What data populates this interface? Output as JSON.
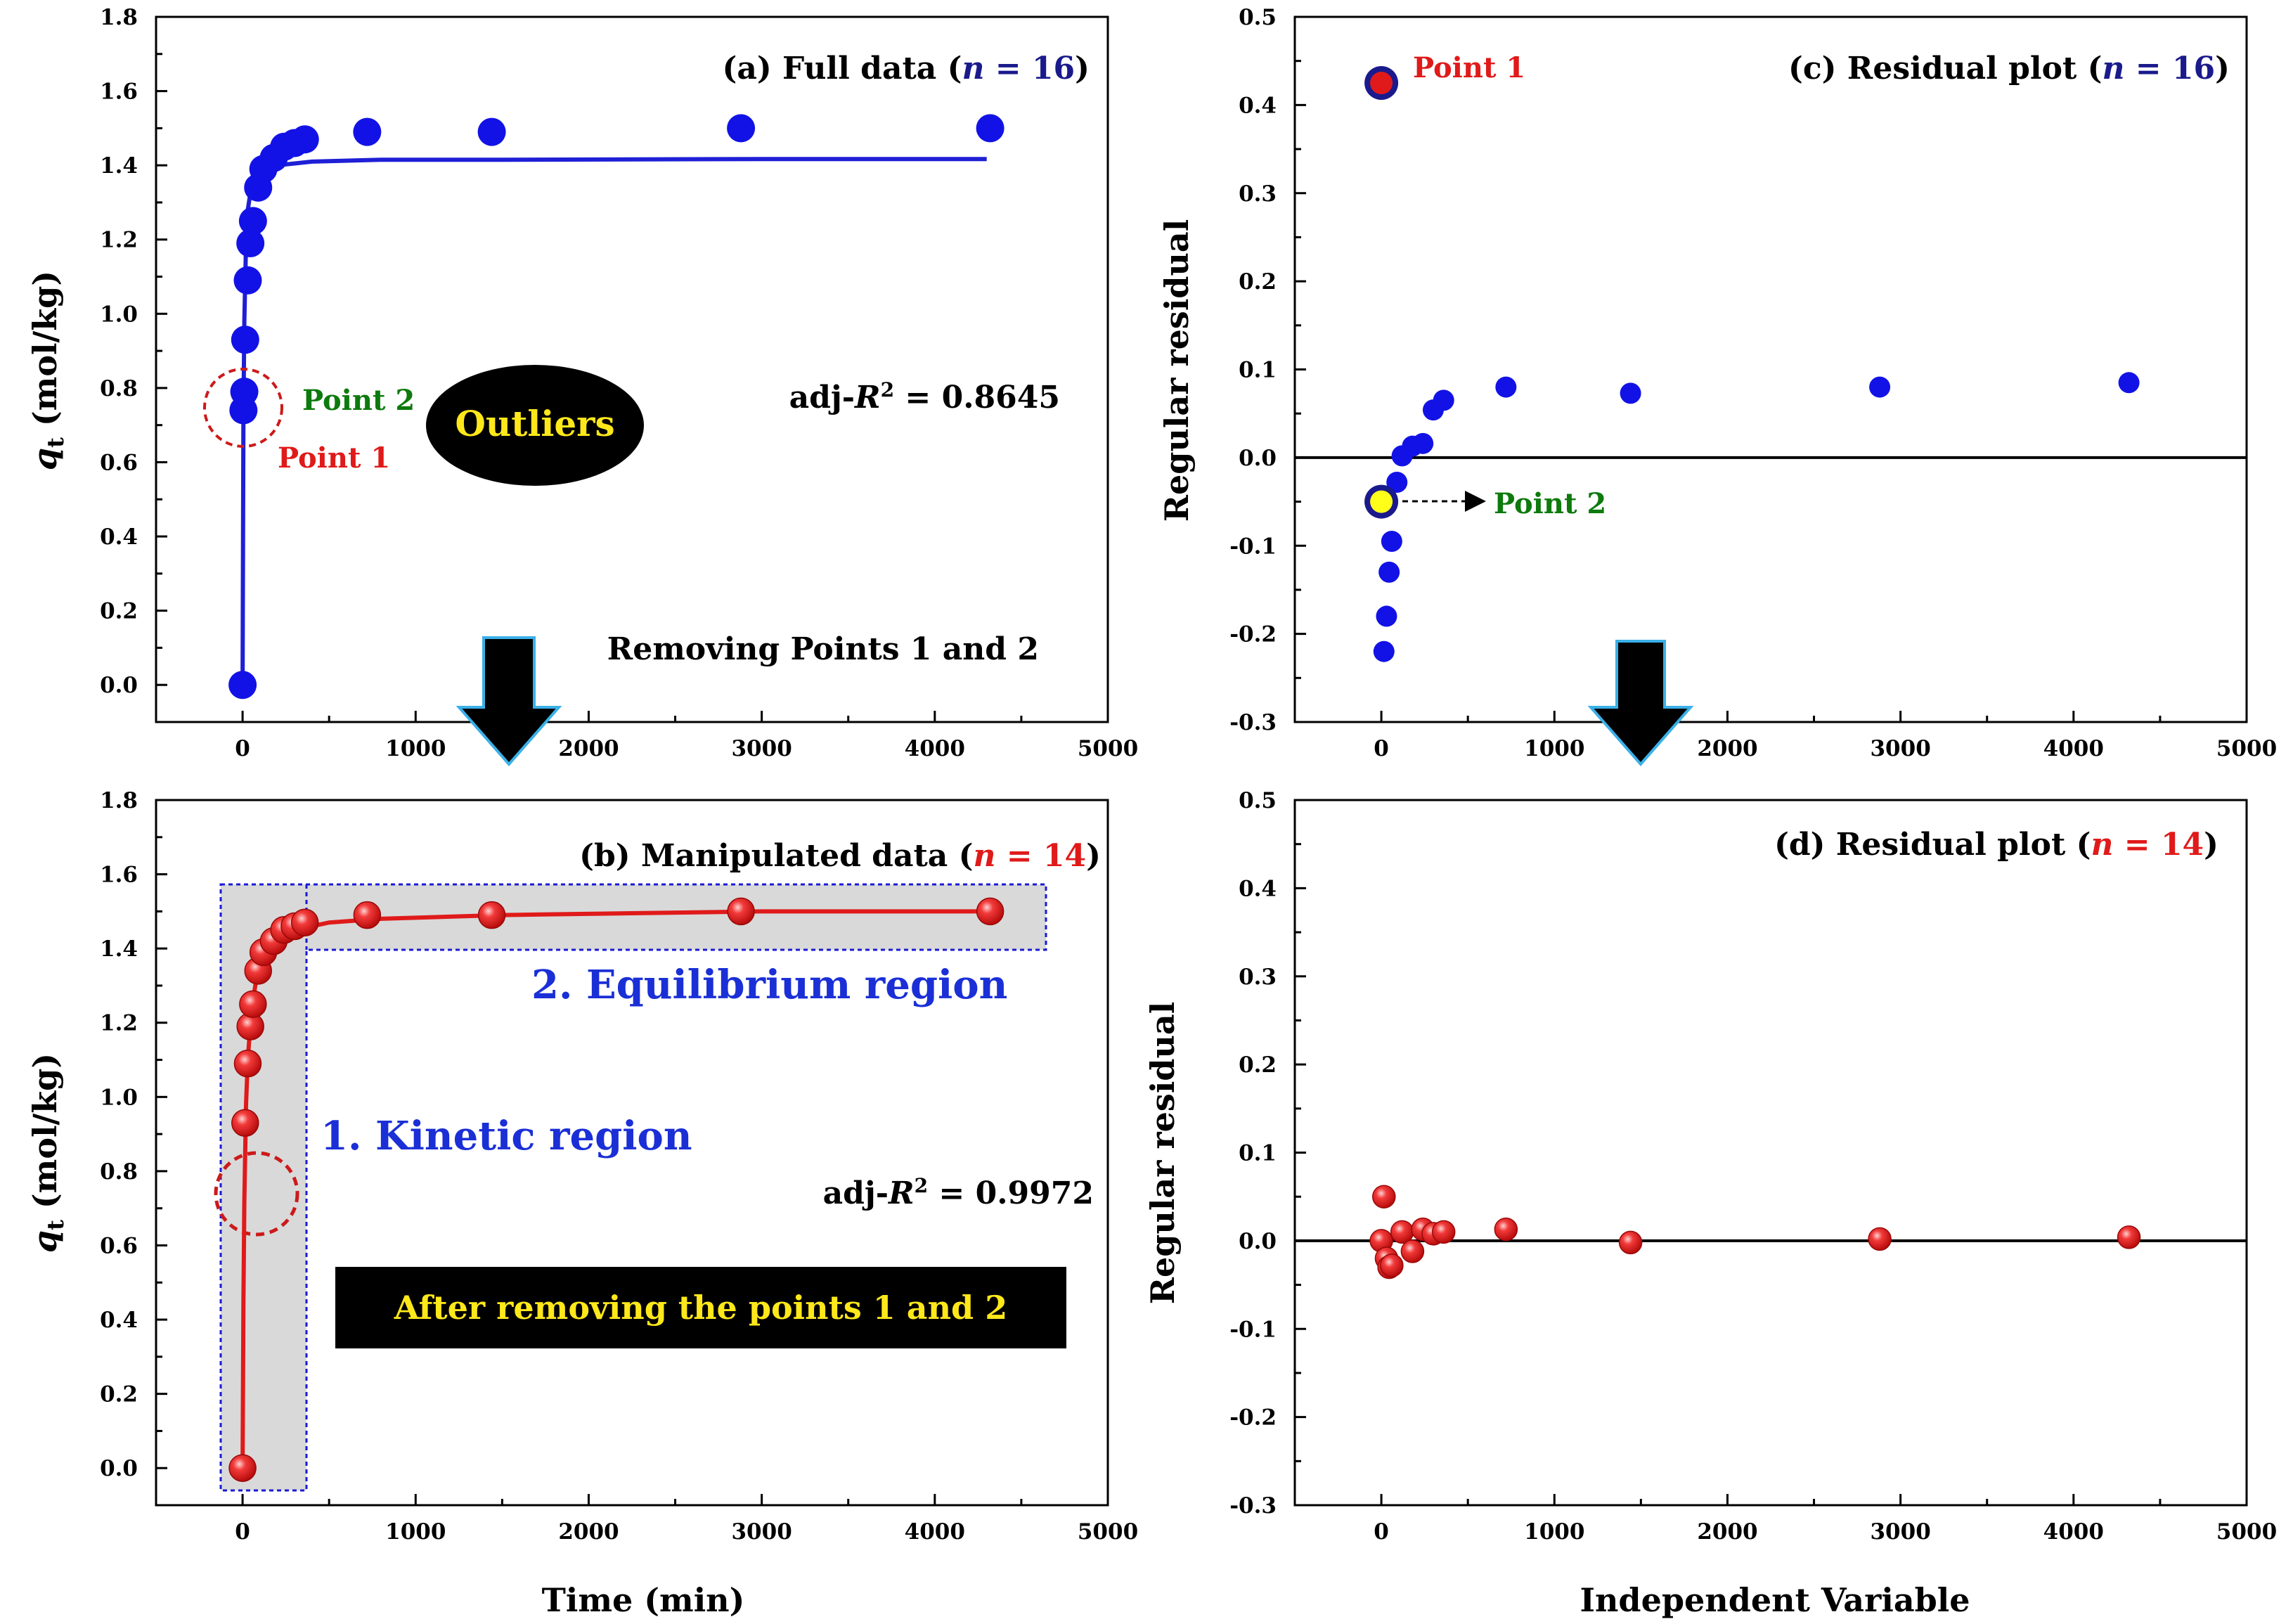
{
  "chart_data": [
    {
      "id": "a",
      "type": "scatter",
      "title": "(a) Full data (",
      "title_var": "n",
      "title_eq": " = 16",
      "title_close": ")",
      "title_n_color": "#1a1a8c",
      "xlabel": "",
      "ylabel_var": "q",
      "ylabel_sub": "t",
      "ylabel_rest": " (mol/kg)",
      "xlim": [
        -500,
        5000
      ],
      "ylim": [
        -0.1,
        1.8
      ],
      "xticks": [
        0,
        1000,
        2000,
        3000,
        4000,
        5000
      ],
      "yticks": [
        0.0,
        0.2,
        0.4,
        0.6,
        0.8,
        1.0,
        1.2,
        1.4,
        1.6,
        1.8
      ],
      "ytick_decimals": 1,
      "marker": "blue-disc",
      "series": [
        {
          "name": "Full data",
          "x": [
            0,
            5,
            10,
            15,
            30,
            45,
            60,
            90,
            120,
            180,
            240,
            300,
            360,
            720,
            1440,
            2880,
            4320
          ],
          "y": [
            0.0,
            0.74,
            0.79,
            0.93,
            1.09,
            1.19,
            1.25,
            1.34,
            1.39,
            1.42,
            1.45,
            1.46,
            1.47,
            1.49,
            1.49,
            1.5,
            1.5
          ]
        }
      ],
      "fit": {
        "color": "#1f1fd6",
        "x": [
          0,
          5,
          10,
          20,
          30,
          50,
          80,
          120,
          200,
          400,
          800,
          1500,
          3000,
          4300
        ],
        "y": [
          0.0,
          0.73,
          0.98,
          1.19,
          1.28,
          1.34,
          1.37,
          1.39,
          1.4,
          1.41,
          1.415,
          1.415,
          1.417,
          1.417
        ]
      },
      "annotations": {
        "adj_prefix": "adj-",
        "adj_var": "R",
        "adj_sup": "2",
        "adj_value": " = 0.8645",
        "point2": "Point 2",
        "point1": "Point 1",
        "outliers": "Outliers",
        "removing": "Removing Points 1 and 2"
      },
      "colors": {
        "point2": "#0d7a0d",
        "point1": "#e01a1a",
        "outliers_text": "#ffe81a",
        "outliers_bg": "#000000"
      }
    },
    {
      "id": "b",
      "type": "scatter",
      "title": "(b) Manipulated data (",
      "title_var": "n",
      "title_eq": " = 14",
      "title_close": ")",
      "title_n_color": "#e01a1a",
      "xlabel": "Time (min)",
      "ylabel_var": "q",
      "ylabel_sub": "t",
      "ylabel_rest": " (mol/kg)",
      "xlim": [
        -500,
        5000
      ],
      "ylim": [
        -0.1,
        1.8
      ],
      "xticks": [
        0,
        1000,
        2000,
        3000,
        4000,
        5000
      ],
      "yticks": [
        0.0,
        0.2,
        0.4,
        0.6,
        0.8,
        1.0,
        1.2,
        1.4,
        1.6,
        1.8
      ],
      "ytick_decimals": 1,
      "marker": "red-sphere",
      "series": [
        {
          "name": "Manipulated data",
          "x": [
            0,
            15,
            30,
            45,
            60,
            90,
            120,
            180,
            240,
            300,
            360,
            720,
            1440,
            2880,
            4320
          ],
          "y": [
            0.0,
            0.93,
            1.09,
            1.19,
            1.25,
            1.34,
            1.39,
            1.42,
            1.45,
            1.46,
            1.47,
            1.49,
            1.49,
            1.5,
            1.5
          ]
        }
      ],
      "fit": {
        "color": "#e01a1a",
        "x": [
          0,
          5,
          10,
          20,
          30,
          50,
          80,
          120,
          200,
          300,
          500,
          800,
          1500,
          3000,
          4320
        ],
        "y": [
          0.0,
          0.45,
          0.72,
          0.98,
          1.1,
          1.23,
          1.32,
          1.38,
          1.43,
          1.45,
          1.47,
          1.48,
          1.49,
          1.5,
          1.5
        ]
      },
      "annotations": {
        "equilibrium": "2. Equilibrium region",
        "kinetic": "1. Kinetic region",
        "adj_prefix": "adj-",
        "adj_var": "R",
        "adj_sup": "2",
        "adj_value": " = 0.9972",
        "after_removing": "After removing the points 1 and 2"
      },
      "colors": {
        "region_text": "#1a2fd6",
        "banner_text": "#ffe81a",
        "banner_bg": "#000000",
        "region_fill": "#d9d9d9",
        "region_border": "#1a1ad6",
        "dashed_circle": "#cc1a1a"
      }
    },
    {
      "id": "c",
      "type": "scatter",
      "title": "(c) Residual plot (",
      "title_var": "n",
      "title_eq": " = 16",
      "title_close": ")",
      "title_n_color": "#1a1a8c",
      "xlabel": "",
      "ylabel": "Regular residual",
      "xlim": [
        -500,
        5000
      ],
      "ylim": [
        -0.3,
        0.5
      ],
      "xticks": [
        0,
        1000,
        2000,
        3000,
        4000,
        5000
      ],
      "yticks": [
        -0.3,
        -0.2,
        -0.1,
        0.0,
        0.1,
        0.2,
        0.3,
        0.4,
        0.5
      ],
      "ytick_decimals": 1,
      "marker": "blue-disc",
      "series": [
        {
          "name": "Residuals (n = 16)",
          "x": [
            15,
            30,
            45,
            60,
            90,
            120,
            180,
            240,
            300,
            360,
            720,
            1440,
            2880,
            4320
          ],
          "y": [
            -0.22,
            -0.18,
            -0.13,
            -0.095,
            -0.028,
            0.002,
            0.013,
            0.016,
            0.054,
            0.065,
            0.08,
            0.073,
            0.08,
            0.085
          ]
        }
      ],
      "highlight_points": [
        {
          "x": 0,
          "y": 0.425,
          "label": "Point 1",
          "fill": "#e01a1a",
          "ring": "#1a1a8c",
          "label_color": "#e01a1a"
        },
        {
          "x": 0,
          "y": -0.05,
          "label": "Point 2",
          "fill": "#ffff1a",
          "ring": "#1a1a8c",
          "label_color": "#0d7a0d"
        }
      ]
    },
    {
      "id": "d",
      "type": "scatter",
      "title": "(d) Residual plot (",
      "title_var": "n",
      "title_eq": " = 14",
      "title_close": ")",
      "title_n_color": "#e01a1a",
      "xlabel": "Independent Variable",
      "ylabel": "Regular residual",
      "xlim": [
        -500,
        5000
      ],
      "ylim": [
        -0.3,
        0.5
      ],
      "xticks": [
        0,
        1000,
        2000,
        3000,
        4000,
        5000
      ],
      "yticks": [
        -0.3,
        -0.2,
        -0.1,
        0.0,
        0.1,
        0.2,
        0.3,
        0.4,
        0.5
      ],
      "ytick_decimals": 1,
      "marker": "red-sphere",
      "series": [
        {
          "name": "Residuals (n = 14)",
          "x": [
            0,
            15,
            30,
            45,
            60,
            120,
            180,
            240,
            300,
            360,
            720,
            1440,
            2880,
            4320
          ],
          "y": [
            0.0,
            0.05,
            -0.02,
            -0.03,
            -0.028,
            0.01,
            -0.012,
            0.013,
            0.008,
            0.01,
            0.013,
            -0.002,
            0.002,
            0.004
          ]
        }
      ]
    }
  ],
  "colors": {
    "blue_marker": "#1212e6",
    "blue_line": "#1f1fd6",
    "red_marker": "#e01a1a",
    "red_marker_highlight": "#ff9a9a",
    "arrow_fill": "#000000",
    "arrow_stroke": "#3ab0e8"
  }
}
